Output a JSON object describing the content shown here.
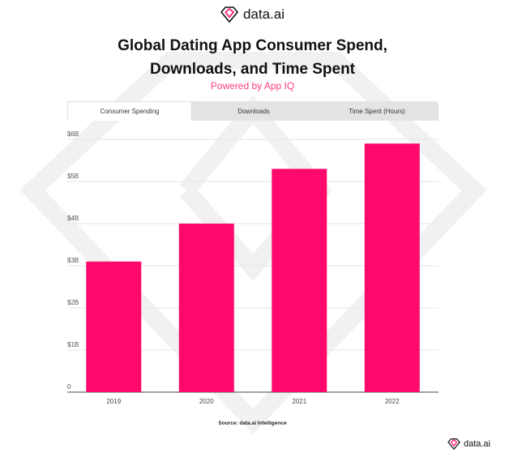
{
  "logo": {
    "text": "data.ai"
  },
  "title_line1": "Global Dating App Consumer Spend,",
  "title_line2": "Downloads, and Time Spent",
  "subtitle": "Powered by App IQ",
  "tabs": [
    {
      "label": "Consumer Spending",
      "active": true
    },
    {
      "label": "Downloads",
      "active": false
    },
    {
      "label": "Time Spent (Hours)",
      "active": false
    }
  ],
  "source": "Source: data.ai Intelligence",
  "colors": {
    "bar": "#ff0a6c",
    "accent": "#ff3d88",
    "grid": "#e6e6e6",
    "axis": "#444444"
  },
  "chart_data": {
    "type": "bar",
    "categories": [
      "2019",
      "2020",
      "2021",
      "2022"
    ],
    "values": [
      3.1,
      4.0,
      5.3,
      5.9
    ],
    "ylim": [
      0,
      6
    ],
    "yticks": [
      0,
      1,
      2,
      3,
      4,
      5,
      6
    ],
    "ytick_labels": [
      "0",
      "$1B",
      "$2B",
      "$3B",
      "$4B",
      "$5B",
      "$6B"
    ],
    "grid": true
  }
}
